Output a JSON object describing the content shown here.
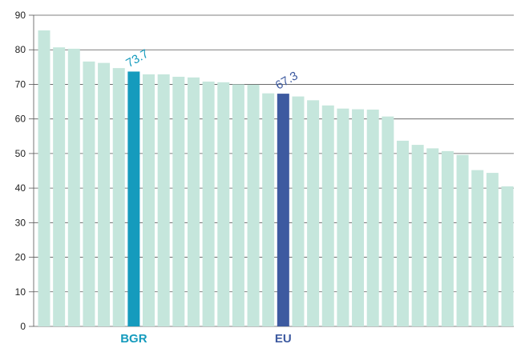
{
  "chart_data": {
    "type": "bar",
    "title": "",
    "xlabel": "",
    "ylabel": "",
    "ylim": [
      0,
      90
    ],
    "yticks": [
      0,
      10,
      20,
      30,
      40,
      50,
      60,
      70,
      80,
      90
    ],
    "grid": "horizontal",
    "values": [
      85.6,
      80.7,
      80.3,
      76.6,
      76.2,
      74.7,
      73.7,
      72.9,
      72.9,
      72.2,
      72.0,
      70.8,
      70.6,
      70.0,
      69.9,
      67.4,
      67.3,
      66.5,
      65.4,
      63.9,
      63.0,
      62.8,
      62.7,
      60.7,
      53.7,
      52.5,
      51.5,
      50.7,
      49.6,
      45.2,
      44.4,
      40.5
    ],
    "highlights": [
      {
        "index": 6,
        "label": "BGR",
        "value_label": "73.7",
        "color": "#159bbd"
      },
      {
        "index": 16,
        "label": "EU",
        "value_label": "67.3",
        "color": "#3d5aa0"
      }
    ],
    "bar_color": "#c5e6dc",
    "grid_color": "#555555"
  }
}
